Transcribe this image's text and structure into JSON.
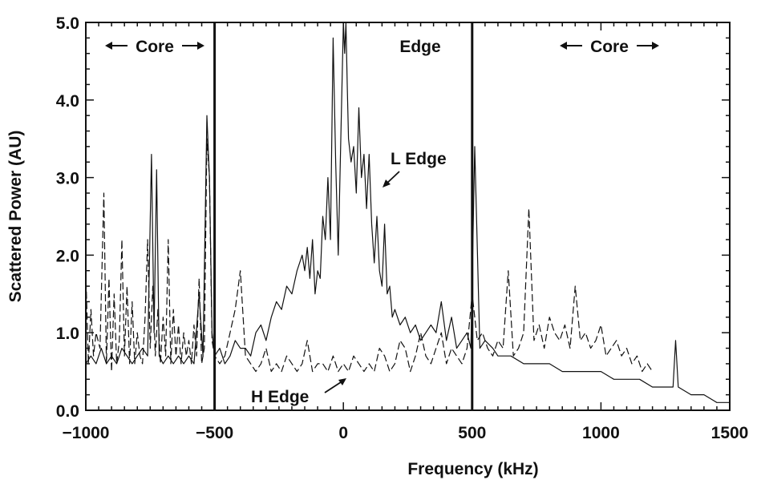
{
  "chart_data": {
    "type": "line",
    "xlabel": "Frequency (kHz)",
    "ylabel": "Scattered Power (AU)",
    "xlim": [
      -1000,
      1500
    ],
    "ylim": [
      0,
      5
    ],
    "x_ticks": [
      -1000,
      -500,
      0,
      500,
      1000,
      1500
    ],
    "x_tick_labels": [
      "−1000",
      "−500",
      "0",
      "500",
      "1000",
      "1500"
    ],
    "y_ticks": [
      0,
      1,
      2,
      3,
      4,
      5
    ],
    "y_tick_labels": [
      "0.0",
      "1.0",
      "2.0",
      "3.0",
      "4.0",
      "5.0"
    ],
    "vertical_lines": [
      -500,
      500
    ],
    "regions": [
      {
        "label": "Core",
        "x_range": [
          -1000,
          -500
        ]
      },
      {
        "label": "Edge",
        "x_range": [
          -500,
          500
        ]
      },
      {
        "label": "Core",
        "x_range": [
          500,
          1500
        ]
      }
    ],
    "region_labels": {
      "core_left": "Core",
      "edge": "Edge",
      "core_right": "Core"
    },
    "annotations": [
      {
        "text": "L Edge",
        "x": 150,
        "y": 3.0
      },
      {
        "text": "H Edge",
        "x": 0,
        "y": 0.4
      }
    ],
    "series": [
      {
        "name": "L Edge",
        "style": "solid",
        "x": [
          -1000,
          -980,
          -960,
          -940,
          -920,
          -900,
          -880,
          -860,
          -840,
          -820,
          -800,
          -780,
          -760,
          -745,
          -735,
          -725,
          -715,
          -700,
          -680,
          -660,
          -640,
          -620,
          -600,
          -580,
          -560,
          -545,
          -530,
          -520,
          -510,
          -500,
          -480,
          -460,
          -440,
          -420,
          -400,
          -380,
          -360,
          -340,
          -320,
          -300,
          -280,
          -260,
          -240,
          -220,
          -200,
          -180,
          -160,
          -150,
          -140,
          -130,
          -120,
          -110,
          -100,
          -90,
          -80,
          -70,
          -60,
          -50,
          -40,
          -30,
          -20,
          -10,
          0,
          5,
          10,
          15,
          20,
          30,
          40,
          50,
          60,
          70,
          80,
          90,
          100,
          110,
          120,
          130,
          140,
          150,
          160,
          170,
          180,
          190,
          200,
          220,
          240,
          260,
          280,
          300,
          320,
          340,
          360,
          380,
          400,
          420,
          440,
          460,
          480,
          495,
          510,
          530,
          550,
          580,
          600,
          650,
          700,
          750,
          800,
          850,
          900,
          950,
          1000,
          1050,
          1100,
          1150,
          1200,
          1250,
          1280,
          1290,
          1300,
          1350,
          1400,
          1450,
          1500
        ],
        "y": [
          0.6,
          0.7,
          0.6,
          0.8,
          0.6,
          0.7,
          0.6,
          0.8,
          0.7,
          0.6,
          0.7,
          0.8,
          0.7,
          3.3,
          1.0,
          3.1,
          0.7,
          0.6,
          0.7,
          0.6,
          0.7,
          0.6,
          0.7,
          0.6,
          1.5,
          0.7,
          3.8,
          3.0,
          1.0,
          0.7,
          0.8,
          0.6,
          0.7,
          0.9,
          0.8,
          0.8,
          0.7,
          1.0,
          1.1,
          0.9,
          1.2,
          1.4,
          1.3,
          1.6,
          1.5,
          1.8,
          2.0,
          1.8,
          2.1,
          1.7,
          2.2,
          1.5,
          1.8,
          1.7,
          2.5,
          2.2,
          3.0,
          2.2,
          4.8,
          3.2,
          2.0,
          3.5,
          5.0,
          4.6,
          5.0,
          4.2,
          3.5,
          3.2,
          3.4,
          2.8,
          3.9,
          3.0,
          3.3,
          2.6,
          3.3,
          2.4,
          1.9,
          2.5,
          1.8,
          1.6,
          2.4,
          1.5,
          1.6,
          1.2,
          1.3,
          1.1,
          1.2,
          1.0,
          1.1,
          0.9,
          1.0,
          1.1,
          1.0,
          1.4,
          0.9,
          1.2,
          0.8,
          0.9,
          1.0,
          0.8,
          3.4,
          0.8,
          0.9,
          0.8,
          0.7,
          0.7,
          0.6,
          0.6,
          0.6,
          0.5,
          0.5,
          0.5,
          0.5,
          0.4,
          0.4,
          0.4,
          0.3,
          0.3,
          0.3,
          0.9,
          0.3,
          0.2,
          0.2,
          0.1,
          0.1
        ]
      },
      {
        "name": "H Edge",
        "style": "dashed",
        "x": [
          -1000,
          -990,
          -980,
          -970,
          -960,
          -945,
          -930,
          -920,
          -910,
          -900,
          -890,
          -880,
          -870,
          -860,
          -850,
          -840,
          -830,
          -820,
          -810,
          -800,
          -790,
          -780,
          -770,
          -760,
          -750,
          -740,
          -730,
          -720,
          -710,
          -700,
          -690,
          -680,
          -670,
          -660,
          -650,
          -640,
          -630,
          -620,
          -610,
          -600,
          -590,
          -580,
          -570,
          -560,
          -550,
          -540,
          -530,
          -520,
          -510,
          -500,
          -480,
          -460,
          -440,
          -420,
          -400,
          -380,
          -360,
          -340,
          -320,
          -300,
          -280,
          -260,
          -240,
          -220,
          -200,
          -180,
          -160,
          -140,
          -120,
          -100,
          -80,
          -60,
          -40,
          -20,
          0,
          20,
          40,
          60,
          80,
          100,
          120,
          140,
          160,
          180,
          200,
          220,
          240,
          260,
          280,
          300,
          320,
          340,
          360,
          380,
          400,
          420,
          440,
          460,
          480,
          500,
          520,
          540,
          560,
          580,
          600,
          620,
          640,
          660,
          680,
          700,
          720,
          740,
          760,
          780,
          800,
          820,
          840,
          860,
          880,
          900,
          920,
          940,
          960,
          980,
          1000,
          1020,
          1040,
          1060,
          1080,
          1100,
          1120,
          1140,
          1160,
          1180,
          1200
        ],
        "y": [
          1.8,
          0.6,
          1.3,
          0.7,
          1.0,
          0.8,
          2.8,
          0.6,
          1.7,
          0.5,
          1.5,
          0.6,
          0.9,
          2.2,
          0.7,
          1.6,
          0.6,
          1.4,
          0.6,
          1.0,
          0.7,
          0.6,
          1.2,
          2.2,
          0.8,
          1.6,
          0.7,
          1.3,
          0.6,
          1.2,
          0.7,
          2.2,
          0.6,
          1.3,
          0.7,
          1.1,
          0.6,
          1.0,
          0.7,
          0.9,
          0.6,
          1.1,
          0.7,
          1.7,
          0.6,
          0.8,
          3.5,
          3.0,
          0.9,
          0.7,
          0.6,
          0.7,
          1.0,
          1.3,
          1.8,
          0.7,
          0.6,
          0.5,
          0.6,
          0.8,
          0.5,
          0.6,
          0.5,
          0.7,
          0.6,
          0.5,
          0.6,
          0.9,
          0.5,
          0.6,
          0.6,
          0.5,
          0.7,
          0.5,
          0.6,
          0.5,
          0.7,
          0.6,
          0.5,
          0.6,
          0.5,
          0.8,
          0.7,
          0.5,
          0.6,
          0.9,
          0.8,
          0.5,
          0.7,
          1.0,
          0.7,
          0.6,
          0.8,
          1.0,
          0.6,
          0.8,
          0.7,
          0.6,
          0.8,
          1.5,
          0.9,
          1.0,
          0.8,
          0.7,
          0.9,
          0.8,
          1.8,
          0.7,
          0.8,
          1.0,
          2.6,
          0.9,
          1.1,
          0.8,
          1.2,
          1.0,
          0.9,
          1.1,
          0.8,
          1.6,
          0.9,
          1.0,
          0.8,
          0.9,
          1.1,
          0.7,
          0.8,
          0.9,
          0.7,
          0.8,
          0.6,
          0.7,
          0.5,
          0.6,
          0.5
        ]
      }
    ],
    "grid": false
  }
}
